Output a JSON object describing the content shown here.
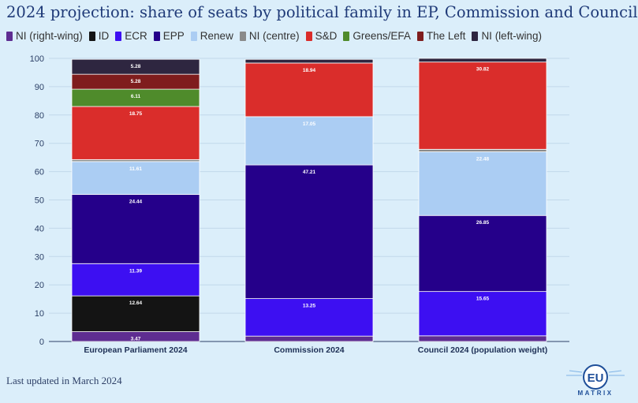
{
  "title": "2024 projection: share of seats by political family in EP, Commission and Council",
  "footer": "Last updated in March 2024",
  "logo": {
    "text": "EU",
    "subtext": "MATRIX"
  },
  "chart_data": {
    "type": "bar",
    "stacked": true,
    "ylim": [
      0,
      100
    ],
    "yticks": [
      0,
      10,
      20,
      30,
      40,
      50,
      60,
      70,
      80,
      90,
      100
    ],
    "categories": [
      "European Parliament 2024",
      "Commission 2024",
      "Council 2024 (population weight)"
    ],
    "series": [
      {
        "name": "NI (right-wing)",
        "color": "#5e2d91",
        "values": [
          3.47,
          1.9,
          2.0
        ],
        "labels": [
          "3.47",
          "",
          ""
        ]
      },
      {
        "name": "ID",
        "color": "#141414",
        "values": [
          12.64,
          0,
          0
        ],
        "labels": [
          "12.64",
          "",
          ""
        ]
      },
      {
        "name": "ECR",
        "color": "#3d0ff2",
        "values": [
          11.39,
          13.25,
          15.65
        ],
        "labels": [
          "11.39",
          "13.25",
          "15.65"
        ]
      },
      {
        "name": "EPP",
        "color": "#25008a",
        "values": [
          24.44,
          47.21,
          26.85
        ],
        "labels": [
          "24.44",
          "47.21",
          "26.85"
        ]
      },
      {
        "name": "Renew",
        "color": "#abcdf3",
        "values": [
          11.61,
          17.05,
          22.48
        ],
        "labels": [
          "11.61",
          "17.05",
          "22.48"
        ]
      },
      {
        "name": "NI (centre)",
        "color": "#8a8a8a",
        "values": [
          0.7,
          0,
          0.9
        ],
        "labels": [
          "",
          "",
          ""
        ]
      },
      {
        "name": "S&D",
        "color": "#da2d2b",
        "values": [
          18.75,
          18.94,
          30.82
        ],
        "labels": [
          "18.75",
          "18.94",
          "30.82"
        ]
      },
      {
        "name": "Greens/EFA",
        "color": "#4f8b2b",
        "values": [
          6.11,
          0,
          0
        ],
        "labels": [
          "6.11",
          "",
          ""
        ]
      },
      {
        "name": "The Left",
        "color": "#7f1d1d",
        "values": [
          5.28,
          0,
          0
        ],
        "labels": [
          "5.28",
          "",
          ""
        ]
      },
      {
        "name": "NI (left-wing)",
        "color": "#2e2640",
        "values": [
          5.28,
          1.3,
          1.3
        ],
        "labels": [
          "5.28",
          "",
          ""
        ]
      }
    ]
  }
}
